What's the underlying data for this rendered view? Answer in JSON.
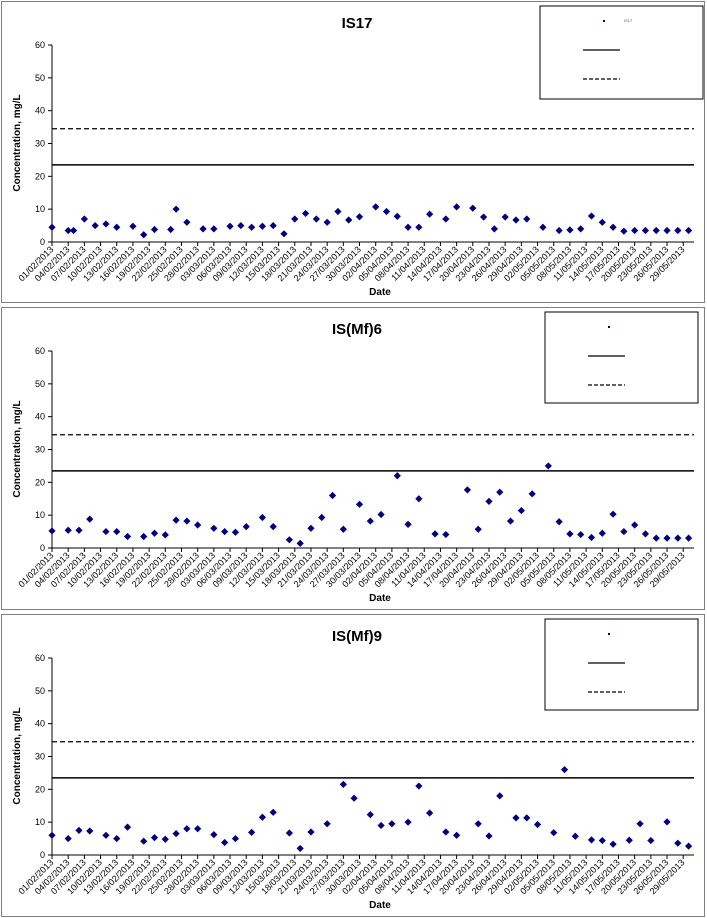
{
  "x_tick_labels": [
    "01/02/2013",
    "04/02/2013",
    "07/02/2013",
    "10/02/2013",
    "13/02/2013",
    "16/02/2013",
    "19/02/2013",
    "22/02/2013",
    "25/02/2013",
    "28/02/2013",
    "03/03/2013",
    "06/03/2013",
    "09/03/2013",
    "12/03/2013",
    "15/03/2013",
    "18/03/2013",
    "21/03/2013",
    "24/03/2013",
    "27/03/2013",
    "30/03/2013",
    "02/04/2013",
    "05/04/2013",
    "08/04/2013",
    "11/04/2013",
    "14/04/2013",
    "17/04/2013",
    "20/04/2013",
    "23/04/2013",
    "26/04/2013",
    "29/04/2013",
    "02/05/2013",
    "05/05/2013",
    "08/05/2013",
    "11/05/2013",
    "14/05/2013",
    "17/05/2013",
    "20/05/2013",
    "23/05/2013",
    "26/05/2013",
    "29/05/2013"
  ],
  "colors": {
    "marker": "#000080",
    "line": "#000000",
    "frame": "#7f7f7f"
  },
  "chart_data": [
    {
      "type": "scatter",
      "title": "IS17",
      "xlabel": "Date",
      "ylabel": "Concentration, mg/L",
      "ylim": [
        0,
        60
      ],
      "y_ticks": [
        0,
        10,
        20,
        30,
        40,
        50,
        60
      ],
      "x_range": [
        "01/02/2013",
        "31/05/2013"
      ],
      "legend_position": "top-right",
      "grid": false,
      "series": [
        {
          "name": "IS17",
          "kind": "markers",
          "x": [
            "01/02/2013",
            "04/02/2013",
            "05/02/2013",
            "07/02/2013",
            "09/02/2013",
            "11/02/2013",
            "13/02/2013",
            "16/02/2013",
            "18/02/2013",
            "20/02/2013",
            "23/02/2013",
            "24/02/2013",
            "26/02/2013",
            "01/03/2013",
            "03/03/2013",
            "06/03/2013",
            "08/03/2013",
            "10/03/2013",
            "12/03/2013",
            "14/03/2013",
            "16/03/2013",
            "18/03/2013",
            "20/03/2013",
            "22/03/2013",
            "24/03/2013",
            "26/03/2013",
            "28/03/2013",
            "30/03/2013",
            "02/04/2013",
            "04/04/2013",
            "06/04/2013",
            "08/04/2013",
            "10/04/2013",
            "12/04/2013",
            "15/04/2013",
            "17/04/2013",
            "20/04/2013",
            "22/04/2013",
            "24/04/2013",
            "26/04/2013",
            "28/04/2013",
            "30/04/2013",
            "03/05/2013",
            "06/05/2013",
            "08/05/2013",
            "10/05/2013",
            "12/05/2013",
            "14/05/2013",
            "16/05/2013",
            "18/05/2013",
            "20/05/2013",
            "22/05/2013",
            "24/05/2013",
            "26/05/2013",
            "28/05/2013",
            "30/05/2013"
          ],
          "y": [
            4.5,
            3.5,
            3.5,
            7.0,
            5.0,
            5.5,
            4.5,
            4.8,
            2.2,
            3.8,
            3.8,
            10.0,
            6.0,
            4.0,
            4.0,
            4.8,
            5.0,
            4.5,
            4.8,
            5.0,
            2.5,
            7.0,
            8.7,
            7.0,
            6.0,
            9.3,
            6.7,
            7.7,
            10.7,
            9.3,
            7.8,
            4.5,
            4.5,
            8.5,
            7.0,
            10.7,
            10.3,
            7.6,
            4.0,
            7.6,
            6.7,
            7.0,
            4.5,
            3.5,
            3.7,
            4.0,
            7.9,
            6.0,
            4.5,
            3.3,
            3.5,
            3.5,
            3.5,
            3.5,
            3.5,
            3.5
          ]
        },
        {
          "name": "",
          "kind": "solid-line",
          "value": 23.5
        },
        {
          "name": "",
          "kind": "dashed-line",
          "value": 34.5
        }
      ]
    },
    {
      "type": "scatter",
      "title": "IS(Mf)6",
      "xlabel": "Date",
      "ylabel": "Concentration, mg/L",
      "ylim": [
        0,
        60
      ],
      "y_ticks": [
        0,
        10,
        20,
        30,
        40,
        50,
        60
      ],
      "x_range": [
        "01/02/2013",
        "31/05/2013"
      ],
      "legend_position": "top-right",
      "grid": false,
      "series": [
        {
          "name": "",
          "kind": "markers",
          "x": [
            "01/02/2013",
            "04/02/2013",
            "06/02/2013",
            "08/02/2013",
            "11/02/2013",
            "13/02/2013",
            "15/02/2013",
            "18/02/2013",
            "20/02/2013",
            "22/02/2013",
            "24/02/2013",
            "26/02/2013",
            "28/02/2013",
            "03/03/2013",
            "05/03/2013",
            "07/03/2013",
            "09/03/2013",
            "12/03/2013",
            "14/03/2013",
            "17/03/2013",
            "19/03/2013",
            "21/03/2013",
            "23/03/2013",
            "25/03/2013",
            "27/03/2013",
            "30/03/2013",
            "01/04/2013",
            "03/04/2013",
            "06/04/2013",
            "08/04/2013",
            "10/04/2013",
            "13/04/2013",
            "15/04/2013",
            "19/04/2013",
            "21/04/2013",
            "23/04/2013",
            "25/04/2013",
            "27/04/2013",
            "29/04/2013",
            "01/05/2013",
            "04/05/2013",
            "06/05/2013",
            "08/05/2013",
            "10/05/2013",
            "12/05/2013",
            "14/05/2013",
            "16/05/2013",
            "18/05/2013",
            "20/05/2013",
            "22/05/2013",
            "24/05/2013",
            "26/05/2013",
            "28/05/2013",
            "30/05/2013"
          ],
          "y": [
            5.2,
            5.4,
            5.4,
            8.8,
            5.0,
            5.0,
            3.5,
            3.5,
            4.5,
            4.0,
            8.5,
            8.2,
            7.0,
            6.0,
            5.0,
            4.8,
            6.5,
            9.3,
            6.5,
            2.5,
            1.4,
            6.0,
            9.3,
            16.0,
            5.7,
            13.3,
            8.2,
            10.2,
            22.0,
            7.2,
            15.0,
            4.3,
            4.1,
            17.7,
            5.7,
            14.2,
            17.0,
            8.2,
            11.4,
            16.5,
            25.0,
            8.0,
            4.3,
            4.1,
            3.2,
            4.5,
            10.3,
            5.0,
            7.0,
            4.3,
            3.0,
            3.0,
            3.0,
            3.0
          ]
        },
        {
          "name": "",
          "kind": "solid-line",
          "value": 23.5
        },
        {
          "name": "",
          "kind": "dashed-line",
          "value": 34.5
        }
      ]
    },
    {
      "type": "scatter",
      "title": "IS(Mf)9",
      "xlabel": "Date",
      "ylabel": "Concentration, mg/L",
      "ylim": [
        0,
        60
      ],
      "y_ticks": [
        0,
        10,
        20,
        30,
        40,
        50,
        60
      ],
      "x_range": [
        "01/02/2013",
        "31/05/2013"
      ],
      "legend_position": "top-right",
      "grid": false,
      "series": [
        {
          "name": "",
          "kind": "markers",
          "x": [
            "01/02/2013",
            "04/02/2013",
            "06/02/2013",
            "08/02/2013",
            "11/02/2013",
            "13/02/2013",
            "15/02/2013",
            "18/02/2013",
            "20/02/2013",
            "22/02/2013",
            "24/02/2013",
            "26/02/2013",
            "28/02/2013",
            "03/03/2013",
            "05/03/2013",
            "07/03/2013",
            "10/03/2013",
            "12/03/2013",
            "14/03/2013",
            "17/03/2013",
            "19/03/2013",
            "21/03/2013",
            "24/03/2013",
            "27/03/2013",
            "29/03/2013",
            "01/04/2013",
            "03/04/2013",
            "05/04/2013",
            "08/04/2013",
            "10/04/2013",
            "12/04/2013",
            "15/04/2013",
            "17/04/2013",
            "21/04/2013",
            "23/04/2013",
            "25/04/2013",
            "28/04/2013",
            "30/04/2013",
            "02/05/2013",
            "05/05/2013",
            "07/05/2013",
            "09/05/2013",
            "12/05/2013",
            "14/05/2013",
            "16/05/2013",
            "19/05/2013",
            "21/05/2013",
            "23/05/2013",
            "26/05/2013",
            "28/05/2013",
            "30/05/2013"
          ],
          "y": [
            6.0,
            5.0,
            7.5,
            7.3,
            6.0,
            5.0,
            8.5,
            4.2,
            5.3,
            4.8,
            6.5,
            8.0,
            8.0,
            6.2,
            3.8,
            5.0,
            6.9,
            11.5,
            13.0,
            6.7,
            2.0,
            7.0,
            9.5,
            21.5,
            17.3,
            12.3,
            9.0,
            9.5,
            10.0,
            21.0,
            12.8,
            7.0,
            6.0,
            9.5,
            5.8,
            18.0,
            11.3,
            11.3,
            9.3,
            6.8,
            26.0,
            5.7,
            4.6,
            4.4,
            3.3,
            4.5,
            9.5,
            4.4,
            10.1,
            3.6,
            2.7
          ]
        },
        {
          "name": "",
          "kind": "solid-line",
          "value": 23.5
        },
        {
          "name": "",
          "kind": "dashed-line",
          "value": 34.5
        }
      ]
    }
  ]
}
